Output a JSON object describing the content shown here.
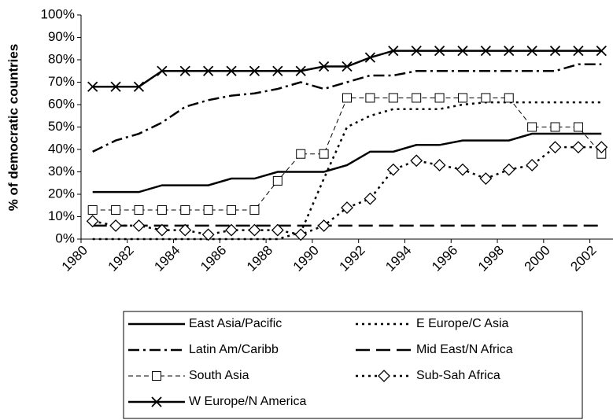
{
  "chart_data": {
    "type": "line",
    "ylabel": "% of democratic countries",
    "x": [
      1980.5,
      1981.5,
      1982.5,
      1983.5,
      1984.5,
      1985.5,
      1986.5,
      1987.5,
      1988.5,
      1989.5,
      1990.5,
      1991.5,
      1992.5,
      1993.5,
      1994.5,
      1995.5,
      1996.5,
      1997.5,
      1998.5,
      1999.5,
      2000.5,
      2001.5,
      2002.5
    ],
    "xlim": [
      1980,
      2003
    ],
    "xticks": [
      1980,
      1982,
      1984,
      1986,
      1988,
      1990,
      1992,
      1994,
      1996,
      1998,
      2000,
      2002
    ],
    "ylim": [
      0,
      100
    ],
    "yticks": [
      {
        "value": 0,
        "label": "0%"
      },
      {
        "value": 10,
        "label": "10%"
      },
      {
        "value": 20,
        "label": "20%"
      },
      {
        "value": 30,
        "label": "30%"
      },
      {
        "value": 40,
        "label": "40%"
      },
      {
        "value": 50,
        "label": "50%"
      },
      {
        "value": 60,
        "label": "60%"
      },
      {
        "value": 70,
        "label": "70%"
      },
      {
        "value": 80,
        "label": "80%"
      },
      {
        "value": 90,
        "label": "90%"
      },
      {
        "value": 100,
        "label": "100%"
      }
    ],
    "grid": false,
    "legend": "bottom",
    "series": [
      {
        "name": "East Asia/Pacific",
        "color": "#000000",
        "style": "solid",
        "marker": "none",
        "values": [
          21,
          21,
          21,
          24,
          24,
          24,
          27,
          27,
          30,
          30,
          30,
          33,
          39,
          39,
          42,
          42,
          44,
          44,
          44,
          47,
          47,
          47,
          47
        ]
      },
      {
        "name": "E Europe/C Asia",
        "color": "#000000",
        "style": "dotted",
        "marker": "none",
        "values": [
          0,
          0,
          0,
          0,
          0,
          0,
          0,
          0,
          0,
          3,
          27,
          50,
          55,
          58,
          58,
          58,
          60,
          61,
          61,
          61,
          61,
          61,
          61
        ]
      },
      {
        "name": "Latin Am/Caribb",
        "color": "#000000",
        "style": "dashdot",
        "marker": "none",
        "values": [
          39,
          44,
          47,
          52,
          59,
          62,
          64,
          65,
          67,
          70,
          67,
          70,
          73,
          73,
          75,
          75,
          75,
          75,
          75,
          75,
          75,
          78,
          78
        ]
      },
      {
        "name": "Mid East/N Africa",
        "color": "#000000",
        "style": "longdash",
        "marker": "none",
        "values": [
          6,
          6,
          6,
          6,
          6,
          6,
          6,
          6,
          6,
          6,
          6,
          6,
          6,
          6,
          6,
          6,
          6,
          6,
          6,
          6,
          6,
          6,
          6
        ]
      },
      {
        "name": "South Asia",
        "color": "#000000",
        "style": "thindash",
        "marker": "square",
        "values": [
          13,
          13,
          13,
          13,
          13,
          13,
          13,
          13,
          26,
          38,
          38,
          63,
          63,
          63,
          63,
          63,
          63,
          63,
          63,
          50,
          50,
          50,
          38
        ]
      },
      {
        "name": "Sub-Sah Africa",
        "color": "#000000",
        "style": "dotted",
        "marker": "diamond",
        "values": [
          8,
          6,
          6,
          4,
          4,
          2,
          4,
          4,
          4,
          2,
          6,
          14,
          18,
          31,
          35,
          33,
          31,
          27,
          31,
          33,
          41,
          41,
          41
        ]
      },
      {
        "name": "W Europe/N America",
        "color": "#000000",
        "style": "solid",
        "marker": "x",
        "values": [
          68,
          68,
          68,
          75,
          75,
          75,
          75,
          75,
          75,
          75,
          77,
          77,
          81,
          84,
          84,
          84,
          84,
          84,
          84,
          84,
          84,
          84,
          84
        ]
      }
    ]
  }
}
